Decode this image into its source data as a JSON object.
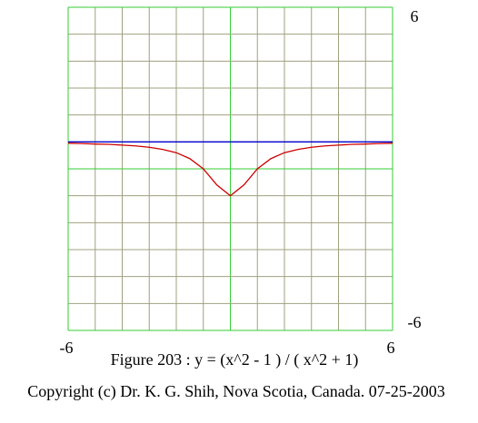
{
  "chart_data": {
    "type": "line",
    "title": "Figure 203 : y = (x^2 - 1 ) / ( x^2 + 1)",
    "footer": "Copyright (c) Dr. K. G. Shih, Nova Scotia, Canada.  07-25-2003",
    "xlim": [
      -6,
      6
    ],
    "ylim": [
      -6,
      6
    ],
    "xticks": [
      -6,
      6
    ],
    "yticks": [
      -6,
      6
    ],
    "minor_xticks": [
      -5,
      -4,
      -3,
      -2,
      -1,
      0,
      1,
      2,
      3,
      4,
      5
    ],
    "minor_yticks": [
      -5,
      -4,
      -3,
      -2,
      -1,
      0,
      1,
      2,
      3,
      4,
      5
    ],
    "grid": true,
    "grid_color": "#a0a080",
    "axis_color": "#33cc33",
    "series": [
      {
        "name": "y = (x^2 - 1) / (x^2 + 1)",
        "color": "#cc0000",
        "x": [
          -6,
          -5.5,
          -5,
          -4.5,
          -4,
          -3.5,
          -3,
          -2.5,
          -2,
          -1.5,
          -1,
          -0.5,
          0,
          0.5,
          1,
          1.5,
          2,
          2.5,
          3,
          3.5,
          4,
          4.5,
          5,
          5.5,
          6
        ],
        "values": [
          0.95,
          0.94,
          0.92,
          0.91,
          0.88,
          0.85,
          0.8,
          0.72,
          0.6,
          0.38,
          0,
          -0.6,
          -1,
          -0.6,
          0,
          0.38,
          0.6,
          0.72,
          0.8,
          0.85,
          0.88,
          0.91,
          0.92,
          0.94,
          0.95
        ]
      },
      {
        "name": "y = 1",
        "color": "#0000cc",
        "x": [
          -6,
          6
        ],
        "values": [
          1,
          1
        ]
      }
    ]
  }
}
